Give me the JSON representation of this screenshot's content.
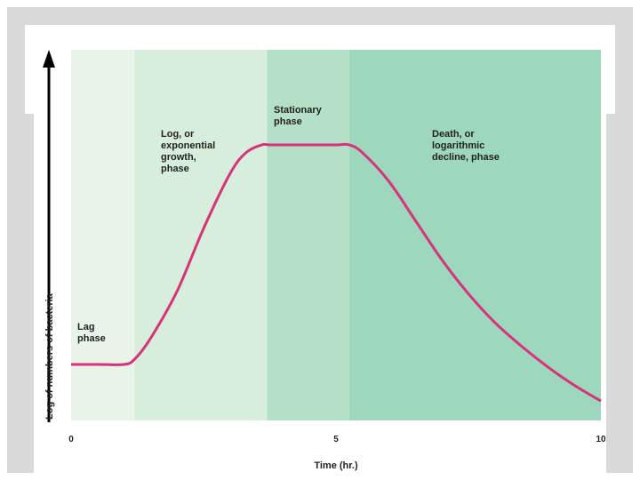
{
  "chart_data": {
    "type": "line",
    "title": "",
    "xlabel": "Time (hr.)",
    "ylabel": "Log of numbers of bacteria",
    "xlim": [
      0,
      10
    ],
    "xticks": [
      "0",
      "5",
      "10"
    ],
    "phases": [
      {
        "name": "lag",
        "label_lines": [
          "Lag",
          "phase"
        ],
        "x_start": 0,
        "x_end": 1.2,
        "color": "#e8f4ea"
      },
      {
        "name": "log",
        "label_lines": [
          "Log, or",
          "exponential",
          "growth,",
          "phase"
        ],
        "x_start": 1.2,
        "x_end": 3.7,
        "color": "#d6eedb"
      },
      {
        "name": "stationary",
        "label_lines": [
          "Stationary",
          "phase"
        ],
        "x_start": 3.7,
        "x_end": 5.25,
        "color": "#b5e0c8"
      },
      {
        "name": "death",
        "label_lines": [
          "Death, or",
          "logarithmic",
          "decline, phase"
        ],
        "x_start": 5.25,
        "x_end": 10,
        "color": "#9dd7bd"
      }
    ],
    "curve_color": "#d6337a",
    "series": [
      {
        "x": [
          0,
          0.5,
          1.0,
          1.2,
          1.5,
          2.0,
          2.5,
          3.0,
          3.3,
          3.6,
          3.75,
          4.0,
          4.5,
          5.0,
          5.25,
          5.5,
          6.0,
          6.5,
          7.0,
          7.5,
          8.0,
          8.5,
          9.0,
          9.5,
          10.0
        ],
        "y": [
          0.16,
          0.16,
          0.16,
          0.18,
          0.26,
          0.44,
          0.68,
          0.89,
          0.97,
          1.0,
          1.0,
          1.0,
          1.0,
          1.0,
          1.0,
          0.97,
          0.86,
          0.71,
          0.56,
          0.43,
          0.32,
          0.23,
          0.15,
          0.08,
          0.02
        ]
      }
    ]
  }
}
